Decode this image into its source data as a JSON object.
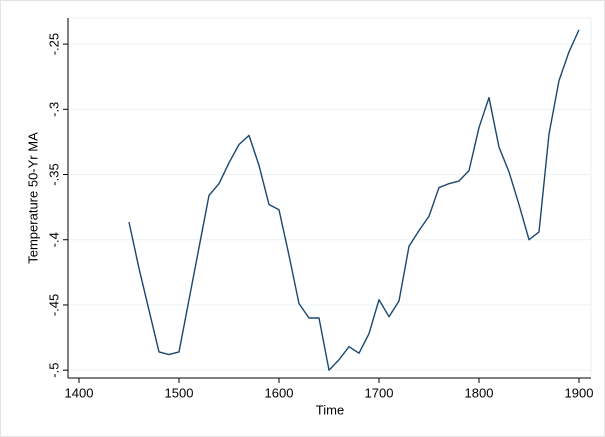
{
  "chart_data": {
    "type": "line",
    "xlabel": "Time",
    "ylabel": "Temperature 50-Yr MA",
    "x": [
      1450,
      1460,
      1470,
      1480,
      1490,
      1500,
      1510,
      1520,
      1530,
      1540,
      1550,
      1560,
      1570,
      1580,
      1590,
      1600,
      1610,
      1620,
      1630,
      1640,
      1650,
      1660,
      1670,
      1680,
      1690,
      1700,
      1710,
      1720,
      1730,
      1740,
      1750,
      1760,
      1770,
      1780,
      1790,
      1800,
      1810,
      1820,
      1830,
      1840,
      1850,
      1860,
      1870,
      1880,
      1890,
      1900
    ],
    "values": [
      -0.3865,
      -0.422,
      -0.454,
      -0.486,
      -0.488,
      -0.486,
      -0.446,
      -0.406,
      -0.366,
      -0.357,
      -0.341,
      -0.327,
      -0.32,
      -0.343,
      -0.373,
      -0.377,
      -0.412,
      -0.449,
      -0.46,
      -0.46,
      -0.5,
      -0.492,
      -0.482,
      -0.487,
      -0.472,
      -0.446,
      -0.459,
      -0.447,
      -0.405,
      -0.393,
      -0.382,
      -0.36,
      -0.357,
      -0.355,
      -0.347,
      -0.314,
      -0.291,
      -0.329,
      -0.348,
      -0.373,
      -0.4,
      -0.394,
      -0.319,
      -0.278,
      -0.256,
      -0.239
    ],
    "color": "#1a476f",
    "xlim": [
      1389,
      1912
    ],
    "xticks": [
      1400,
      1500,
      1600,
      1700,
      1800,
      1900
    ],
    "ylim": [
      -0.506,
      -0.23
    ],
    "yticks": [
      {
        "value": -0.5,
        "label": "-.5"
      },
      {
        "value": -0.45,
        "label": "-.45"
      },
      {
        "value": -0.4,
        "label": "-.4"
      },
      {
        "value": -0.35,
        "label": "-.35"
      },
      {
        "value": -0.3,
        "label": "-.3"
      },
      {
        "value": -0.25,
        "label": "-.25"
      }
    ],
    "grid": true
  }
}
